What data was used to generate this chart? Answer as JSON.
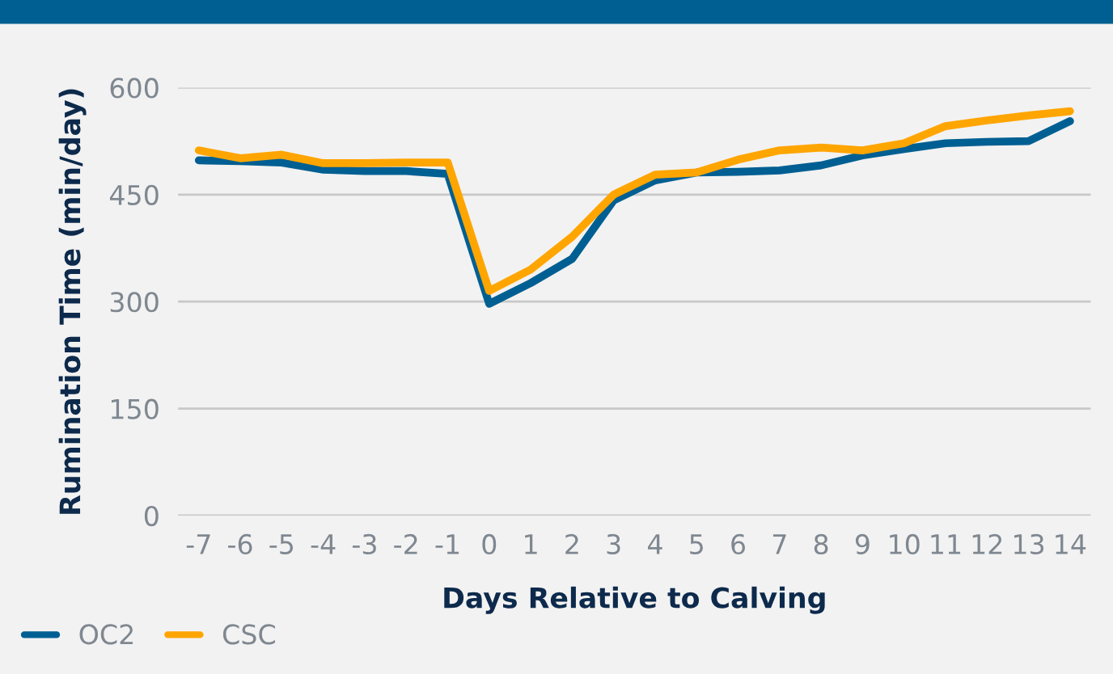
{
  "chart_data": {
    "type": "line",
    "xlabel": "Days Relative to Calving",
    "ylabel": "Rumination Time (min/day)",
    "x": [
      -7,
      -6,
      -5,
      -4,
      -3,
      -2,
      -1,
      0,
      1,
      2,
      3,
      4,
      5,
      6,
      7,
      8,
      9,
      10,
      11,
      12,
      13,
      14
    ],
    "series": [
      {
        "name": "OC2",
        "color": "#005f92",
        "values": [
          498,
          497,
          495,
          485,
          483,
          483,
          479,
          297,
          326,
          360,
          442,
          470,
          481,
          482,
          484,
          491,
          505,
          514,
          522,
          524,
          525,
          553
        ]
      },
      {
        "name": "CSC",
        "color": "#ffa500",
        "values": [
          512,
          501,
          506,
          494,
          494,
          495,
          495,
          315,
          345,
          391,
          450,
          478,
          481,
          499,
          512,
          516,
          512,
          522,
          546,
          554,
          561,
          567
        ]
      }
    ],
    "xlim": [
      -7.5,
      14.5
    ],
    "ylim": [
      0,
      600
    ],
    "xticks": [
      -7,
      -6,
      -5,
      -4,
      -3,
      -2,
      -1,
      0,
      1,
      2,
      3,
      4,
      5,
      6,
      7,
      8,
      9,
      10,
      11,
      12,
      13,
      14
    ],
    "yticks": [
      0,
      150,
      300,
      450,
      600
    ],
    "grid": "y",
    "legend": "bottom left"
  }
}
